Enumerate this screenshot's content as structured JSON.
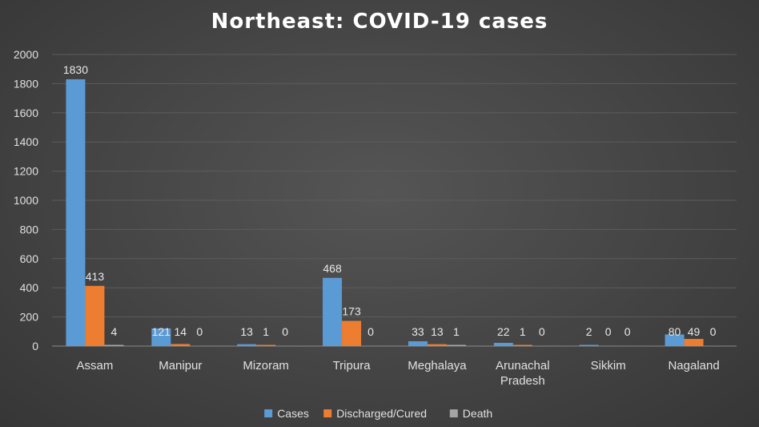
{
  "chart_data": {
    "type": "bar",
    "title": "Northeast:  COVID-19  cases",
    "categories": [
      [
        "Assam"
      ],
      [
        "Manipur"
      ],
      [
        "Mizoram"
      ],
      [
        "Tripura"
      ],
      [
        "Meghalaya"
      ],
      [
        "Arunachal",
        "Pradesh"
      ],
      [
        "Sikkim"
      ],
      [
        "Nagaland"
      ]
    ],
    "series": [
      {
        "name": "Cases",
        "color": "#5b9bd5",
        "values": [
          1830,
          121,
          13,
          468,
          33,
          22,
          2,
          80
        ]
      },
      {
        "name": "Discharged/Cured",
        "color": "#ed7d31",
        "values": [
          413,
          14,
          1,
          173,
          13,
          1,
          0,
          49
        ]
      },
      {
        "name": "Death",
        "color": "#a5a5a5",
        "values": [
          4,
          0,
          0,
          0,
          1,
          0,
          0,
          0
        ]
      }
    ],
    "ylim": [
      0,
      2000
    ],
    "yticks": [
      0,
      200,
      400,
      600,
      800,
      1000,
      1200,
      1400,
      1600,
      1800,
      2000
    ],
    "grid": true,
    "legend": "bottom",
    "xlabel": "",
    "ylabel": ""
  }
}
